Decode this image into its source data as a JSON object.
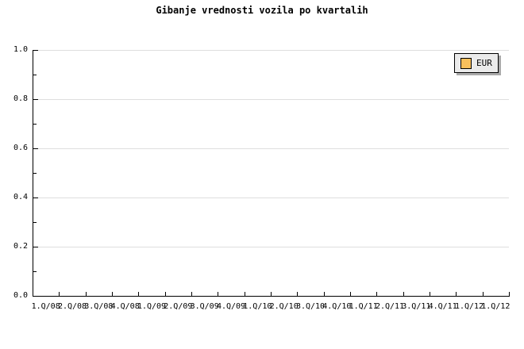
{
  "title": "Gibanje vrednosti vozila po kvartalih",
  "legend": {
    "label": "EUR",
    "swatch_color": "#f9c05c",
    "background": "#ebebeb",
    "shadow_color": "#aaaaaa"
  },
  "colors": {
    "background": "#ffffff",
    "axis": "#000000",
    "grid": "#dedede",
    "text": "#000000"
  },
  "chart_data": {
    "type": "line",
    "title": "Gibanje vrednosti vozila po kvartalih",
    "xlabel": "",
    "ylabel": "",
    "categories": [
      "1.Q/08",
      "2.Q/08",
      "3.Q/08",
      "4.Q/08",
      "1.Q/09",
      "2.Q/09",
      "3.Q/09",
      "4.Q/09",
      "1.Q/10",
      "2.Q/10",
      "3.Q/10",
      "4.Q/10",
      "1.Q/11",
      "2.Q/11",
      "3.Q/11",
      "4.Q/11",
      "1.Q/12",
      "1.Q/12"
    ],
    "series": [
      {
        "name": "EUR",
        "color": "#f9c05c",
        "values": []
      }
    ],
    "ylim": [
      0.0,
      1.0
    ],
    "yticks": [
      0.0,
      0.2,
      0.4,
      0.6,
      0.8,
      1.0
    ],
    "ytick_labels": [
      "0.0",
      "0.2",
      "0.4",
      "0.6",
      "0.8",
      "1.0"
    ],
    "minor_ytick_step": 0.1,
    "grid": true,
    "legend_position": "top-right",
    "plot_is_empty": true
  }
}
